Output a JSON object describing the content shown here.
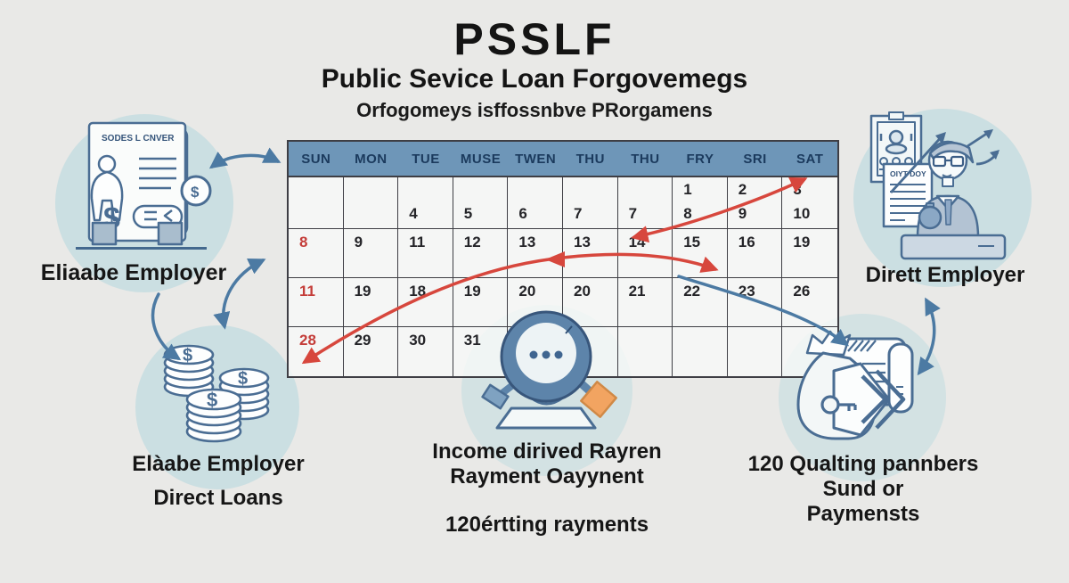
{
  "title": {
    "acronym": "PSSLF",
    "line1": "Public Sevice Loan Forgovemegs",
    "line2": "Orfogomeys isffossnbve PRorgamens"
  },
  "calendar": {
    "day_headers": [
      "SUN",
      "MON",
      "TUE",
      "MUSE",
      "TWEN",
      "THU",
      "THU",
      "FRY",
      "SRI",
      "SAT"
    ],
    "rows": [
      {
        "cells": [
          {
            "top": "",
            "main": ""
          },
          {
            "top": "",
            "main": ""
          },
          {
            "top": "",
            "main": "4"
          },
          {
            "top": "",
            "main": "5"
          },
          {
            "top": "",
            "main": "6"
          },
          {
            "top": "",
            "main": "7"
          },
          {
            "top": "",
            "main": "7"
          },
          {
            "top": "1",
            "main": "8"
          },
          {
            "top": "2",
            "main": "9"
          },
          {
            "top": "3",
            "main": "10"
          }
        ]
      },
      {
        "cells": [
          {
            "main": "8",
            "red": true
          },
          {
            "main": "9"
          },
          {
            "main": "11"
          },
          {
            "main": "12"
          },
          {
            "main": "13"
          },
          {
            "main": "13"
          },
          {
            "main": "14"
          },
          {
            "main": "15"
          },
          {
            "main": "16"
          },
          {
            "main": "19"
          }
        ]
      },
      {
        "cells": [
          {
            "main": "11",
            "red": true
          },
          {
            "main": "19"
          },
          {
            "main": "18"
          },
          {
            "main": "19"
          },
          {
            "main": "20"
          },
          {
            "main": "20"
          },
          {
            "main": "21"
          },
          {
            "main": "22"
          },
          {
            "main": "23"
          },
          {
            "main": "26"
          }
        ]
      },
      {
        "cells": [
          {
            "main": "28",
            "red": true
          },
          {
            "main": "29"
          },
          {
            "main": "30"
          },
          {
            "main": "31"
          },
          {
            "main": ""
          },
          {
            "main": ""
          },
          {
            "main": ""
          },
          {
            "main": ""
          },
          {
            "main": ""
          },
          {
            "main": ""
          }
        ]
      }
    ]
  },
  "labels": {
    "left_top": "Eliaabe Employer",
    "left_bottom_1": "Elàabe Employer",
    "left_bottom_2": "Direct Loans",
    "center_1": "Income dirived Rayren",
    "center_2": "Rayment Oayynent",
    "center_3": "120értting rayments",
    "right_top": "Dirett Employer",
    "right_bottom_1": "120 Qualting pannbers",
    "right_bottom_2": "Sund or",
    "right_bottom_3": "Paymensts"
  },
  "icons": {
    "document_header_text": "SODES L CNVER",
    "certificate_header_text": "OIYT DOY",
    "dollar": "$"
  },
  "colors": {
    "page_bg": "#e9e9e7",
    "calendar_header": "#6e96b8",
    "calendar_header_text": "#1b3a5d",
    "grid_line": "#3e3e44",
    "red_accent": "#c43d39",
    "arrow_red": "#d7473d",
    "arrow_blue": "#4c7aa3",
    "circle_fill": "#c5dde0",
    "icon_stroke": "#4a6d93",
    "orange_accent": "#f2a461"
  }
}
